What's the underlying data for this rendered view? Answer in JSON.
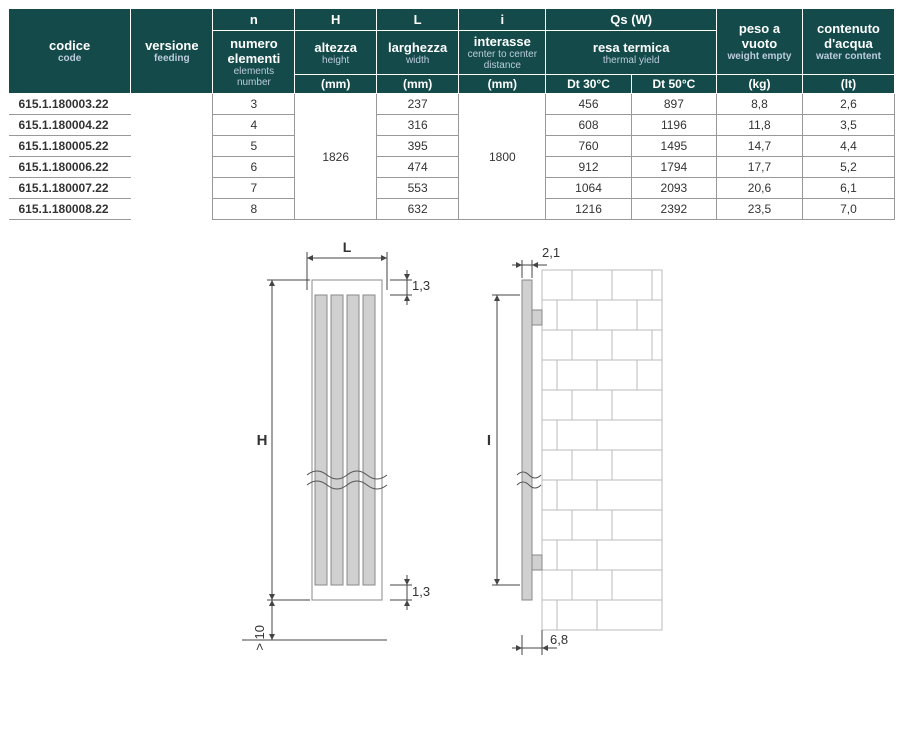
{
  "table": {
    "header": {
      "codice": {
        "label_it": "codice",
        "label_en": "code"
      },
      "versione": {
        "label_it": "versione",
        "label_en": "feeding"
      },
      "n": {
        "sym": "n",
        "label_it": "numero elementi",
        "label_en": "elements number"
      },
      "H": {
        "sym": "H",
        "label_it": "altezza",
        "label_en": "height",
        "unit": "(mm)"
      },
      "L": {
        "sym": "L",
        "label_it": "larghezza",
        "label_en": "width",
        "unit": "(mm)"
      },
      "i": {
        "sym": "i",
        "label_it": "interasse",
        "label_en": "center to center distance",
        "unit": "(mm)"
      },
      "Qs": {
        "sym": "Qs (W)",
        "label_it": "resa termica",
        "label_en": "thermal yield",
        "dt30": "Dt 30°C",
        "dt50": "Dt 50°C"
      },
      "peso": {
        "label_it": "peso a vuoto",
        "label_en": "weight empty",
        "unit": "(kg)"
      },
      "acqua": {
        "label_it": "contenuto d'acqua",
        "label_en": "water content",
        "unit": "(lt)"
      }
    },
    "shared": {
      "H": "1826",
      "i": "1800"
    },
    "rows": [
      {
        "code": "615.1.180003.22",
        "n": "3",
        "L": "237",
        "dt30": "456",
        "dt50": "897",
        "peso": "8,8",
        "acqua": "2,6"
      },
      {
        "code": "615.1.180004.22",
        "n": "4",
        "L": "316",
        "dt30": "608",
        "dt50": "1196",
        "peso": "11,8",
        "acqua": "3,5"
      },
      {
        "code": "615.1.180005.22",
        "n": "5",
        "L": "395",
        "dt30": "760",
        "dt50": "1495",
        "peso": "14,7",
        "acqua": "4,4"
      },
      {
        "code": "615.1.180006.22",
        "n": "6",
        "L": "474",
        "dt30": "912",
        "dt50": "1794",
        "peso": "17,7",
        "acqua": "5,2"
      },
      {
        "code": "615.1.180007.22",
        "n": "7",
        "L": "553",
        "dt30": "1064",
        "dt50": "2093",
        "peso": "20,6",
        "acqua": "6,1"
      },
      {
        "code": "615.1.180008.22",
        "n": "8",
        "L": "632",
        "dt30": "1216",
        "dt50": "2392",
        "peso": "23,5",
        "acqua": "7,0"
      }
    ]
  },
  "diagram": {
    "labels": {
      "L": "L",
      "H": "H",
      "I": "I",
      "top_right": "1,3",
      "bottom_right": "1,3",
      "bottom_clearance": "> 10",
      "panel_width": "2,1",
      "bracket_depth": "6,8"
    },
    "colors": {
      "header_bg": "#144a4a",
      "header_text": "#ffffff",
      "panel_fill": "#d0d0d0",
      "panel_stroke": "#888888",
      "dim_stroke": "#444444",
      "wall_stroke": "#aaaaaa",
      "text": "#333333",
      "bg": "#ffffff"
    }
  }
}
